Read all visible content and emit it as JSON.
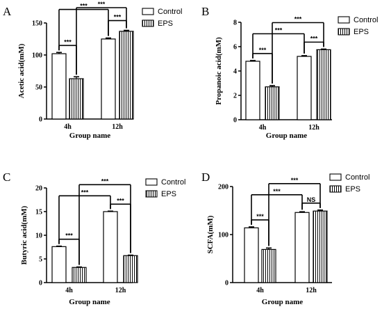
{
  "chart_data": [
    {
      "type": "bar",
      "panel": "A",
      "categories": [
        "4h",
        "12h"
      ],
      "series": [
        {
          "name": "Control",
          "values": [
            102,
            125
          ],
          "errors": [
            2,
            1.5
          ]
        },
        {
          "name": "EPS",
          "values": [
            63,
            137
          ],
          "errors": [
            3,
            1.5
          ]
        }
      ],
      "xlabel": "Group name",
      "ylabel": "Acetic acid(mM)",
      "ylim": [
        0,
        150
      ],
      "yticks": [
        0,
        50,
        100,
        150
      ],
      "legend_position": "top-right",
      "grid": false,
      "significance": [
        {
          "from": [
            0,
            0
          ],
          "to": [
            0,
            1
          ],
          "label": "***"
        },
        {
          "from": [
            1,
            0
          ],
          "to": [
            1,
            1
          ],
          "label": "***"
        },
        {
          "from": [
            0,
            0
          ],
          "to": [
            1,
            0
          ],
          "label": "***"
        },
        {
          "from": [
            0,
            1
          ],
          "to": [
            1,
            1
          ],
          "label": "***"
        }
      ]
    },
    {
      "type": "bar",
      "panel": "B",
      "categories": [
        "4h",
        "12h"
      ],
      "series": [
        {
          "name": "Control",
          "values": [
            4.8,
            5.2
          ],
          "errors": [
            0.06,
            0.06
          ]
        },
        {
          "name": "EPS",
          "values": [
            2.7,
            5.75
          ],
          "errors": [
            0.1,
            0.05
          ]
        }
      ],
      "xlabel": "Group name",
      "ylabel": "Propanoic acid(mM)",
      "ylim": [
        0,
        8
      ],
      "yticks": [
        0,
        2,
        4,
        6,
        8
      ],
      "legend_position": "top-right",
      "grid": false,
      "significance": [
        {
          "from": [
            0,
            0
          ],
          "to": [
            0,
            1
          ],
          "label": "***"
        },
        {
          "from": [
            0,
            0
          ],
          "to": [
            1,
            0
          ],
          "label": "***"
        },
        {
          "from": [
            1,
            0
          ],
          "to": [
            1,
            1
          ],
          "label": "***"
        },
        {
          "from": [
            0,
            1
          ],
          "to": [
            1,
            1
          ],
          "label": "***"
        }
      ]
    },
    {
      "type": "bar",
      "panel": "C",
      "categories": [
        "4h",
        "12h"
      ],
      "series": [
        {
          "name": "Control",
          "values": [
            7.6,
            15.0
          ],
          "errors": [
            0.1,
            0.1
          ]
        },
        {
          "name": "EPS",
          "values": [
            3.2,
            5.7
          ],
          "errors": [
            0.1,
            0.1
          ]
        }
      ],
      "xlabel": "Group name",
      "ylabel": "Butyric acid(mM)",
      "ylim": [
        0,
        20
      ],
      "yticks": [
        0,
        5,
        10,
        15,
        20
      ],
      "legend_position": "top-right",
      "grid": false,
      "significance": [
        {
          "from": [
            0,
            0
          ],
          "to": [
            0,
            1
          ],
          "label": "***"
        },
        {
          "from": [
            0,
            0
          ],
          "to": [
            1,
            0
          ],
          "label": "***"
        },
        {
          "from": [
            1,
            0
          ],
          "to": [
            1,
            1
          ],
          "label": "***"
        },
        {
          "from": [
            0,
            1
          ],
          "to": [
            1,
            1
          ],
          "label": "***"
        }
      ]
    },
    {
      "type": "bar",
      "panel": "D",
      "categories": [
        "4h",
        "12h"
      ],
      "series": [
        {
          "name": "Control",
          "values": [
            114,
            146
          ],
          "errors": [
            2,
            1.5
          ]
        },
        {
          "name": "EPS",
          "values": [
            69,
            149
          ],
          "errors": [
            3,
            2
          ]
        }
      ],
      "xlabel": "Group name",
      "ylabel": "SCFA(mM)",
      "ylim": [
        0,
        200
      ],
      "yticks": [
        0,
        100,
        200
      ],
      "legend_position": "top-right",
      "grid": false,
      "significance": [
        {
          "from": [
            0,
            0
          ],
          "to": [
            0,
            1
          ],
          "label": "***"
        },
        {
          "from": [
            0,
            0
          ],
          "to": [
            1,
            0
          ],
          "label": "***"
        },
        {
          "from": [
            1,
            0
          ],
          "to": [
            1,
            1
          ],
          "label": "NS"
        },
        {
          "from": [
            0,
            1
          ],
          "to": [
            1,
            1
          ],
          "label": "***"
        }
      ]
    }
  ]
}
